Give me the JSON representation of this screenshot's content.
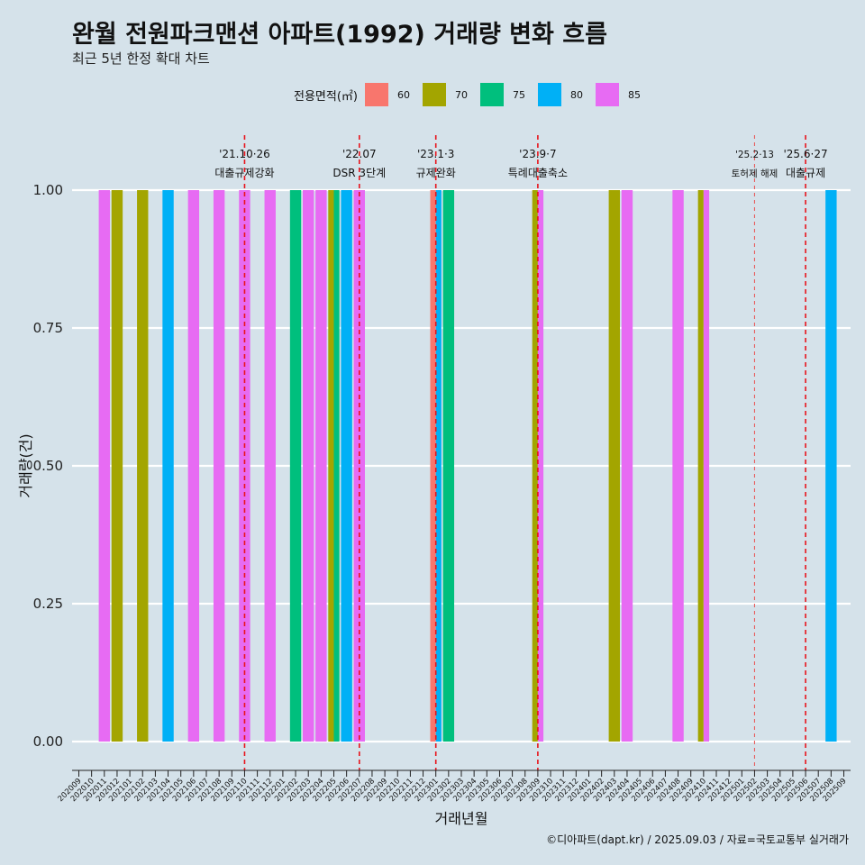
{
  "header": {
    "title": "완월 전원파크맨션 아파트(1992) 거래량 변화 흐름",
    "subtitle": "최근 5년 한정 확대 차트"
  },
  "legend": {
    "title": "전용면적(㎡)",
    "items": [
      {
        "label": "60",
        "color": "#F8766D"
      },
      {
        "label": "70",
        "color": "#A3A500"
      },
      {
        "label": "75",
        "color": "#00BF7D"
      },
      {
        "label": "80",
        "color": "#00B0F6"
      },
      {
        "label": "85",
        "color": "#E76BF3"
      }
    ]
  },
  "caption": "©디아파트(dapt.kr) / 2025.09.03 / 자료=국토교통부 실거래가",
  "chart_data": {
    "type": "bar",
    "title": "완월 전원파크맨션 아파트(1992) 거래량 변화 흐름",
    "subtitle": "최근 5년 한정 확대 차트",
    "xlabel": "거래년월",
    "ylabel": "거래량(건)",
    "ylim": [
      0,
      1
    ],
    "yticks": [
      "0.00",
      "0.25",
      "0.50",
      "0.75",
      "1.00"
    ],
    "grid": true,
    "legend_position": "top",
    "categories": [
      "202009",
      "202010",
      "202011",
      "202012",
      "202101",
      "202102",
      "202103",
      "202104",
      "202105",
      "202106",
      "202107",
      "202108",
      "202109",
      "202110",
      "202111",
      "202112",
      "202201",
      "202202",
      "202203",
      "202204",
      "202205",
      "202206",
      "202207",
      "202208",
      "202209",
      "202210",
      "202211",
      "202212",
      "202301",
      "202302",
      "202303",
      "202304",
      "202305",
      "202306",
      "202307",
      "202308",
      "202309",
      "202310",
      "202311",
      "202312",
      "202401",
      "202402",
      "202403",
      "202404",
      "202405",
      "202406",
      "202407",
      "202408",
      "202409",
      "202410",
      "202411",
      "202412",
      "202501",
      "202502",
      "202503",
      "202504",
      "202505",
      "202506",
      "202507",
      "202508",
      "202509"
    ],
    "bars": [
      {
        "month": "202011",
        "area": "85",
        "value": 1
      },
      {
        "month": "202012",
        "area": "70",
        "value": 1
      },
      {
        "month": "202102",
        "area": "70",
        "value": 1
      },
      {
        "month": "202104",
        "area": "80",
        "value": 1
      },
      {
        "month": "202106",
        "area": "85",
        "value": 1
      },
      {
        "month": "202108",
        "area": "85",
        "value": 1
      },
      {
        "month": "202110",
        "area": "85",
        "value": 1
      },
      {
        "month": "202112",
        "area": "85",
        "value": 1
      },
      {
        "month": "202202",
        "area": "75",
        "value": 1
      },
      {
        "month": "202203",
        "area": "85",
        "value": 1
      },
      {
        "month": "202204",
        "area": "85",
        "value": 1
      },
      {
        "month": "202205",
        "area": "70",
        "value": 1
      },
      {
        "month": "202205",
        "area": "75",
        "value": 1
      },
      {
        "month": "202206",
        "area": "80",
        "value": 1
      },
      {
        "month": "202207",
        "area": "85",
        "value": 1
      },
      {
        "month": "202301",
        "area": "60",
        "value": 1
      },
      {
        "month": "202301",
        "area": "80",
        "value": 1
      },
      {
        "month": "202302",
        "area": "75",
        "value": 1
      },
      {
        "month": "202309",
        "area": "70",
        "value": 1
      },
      {
        "month": "202309",
        "area": "85",
        "value": 1
      },
      {
        "month": "202403",
        "area": "70",
        "value": 1
      },
      {
        "month": "202404",
        "area": "85",
        "value": 1
      },
      {
        "month": "202408",
        "area": "85",
        "value": 1
      },
      {
        "month": "202410",
        "area": "70",
        "value": 1
      },
      {
        "month": "202410",
        "area": "85",
        "value": 1
      },
      {
        "month": "202508",
        "area": "80",
        "value": 1
      }
    ],
    "annotations": [
      {
        "month": "202110",
        "date": "'21.10·26",
        "label": "대출규제강화",
        "style": "major"
      },
      {
        "month": "202207",
        "date": "'22.07",
        "label": "DSR 3단계",
        "style": "major"
      },
      {
        "month": "202301",
        "date": "'23.1·3",
        "label": "규제완화",
        "style": "major"
      },
      {
        "month": "202309",
        "date": "'23.9·7",
        "label": "특례대출축소",
        "style": "major"
      },
      {
        "month": "202502",
        "date": "'25.2·13",
        "label": "토허제 해제",
        "style": "minor"
      },
      {
        "month": "202506",
        "date": "'25.6·27",
        "label": "대출규제",
        "style": "major"
      }
    ]
  }
}
